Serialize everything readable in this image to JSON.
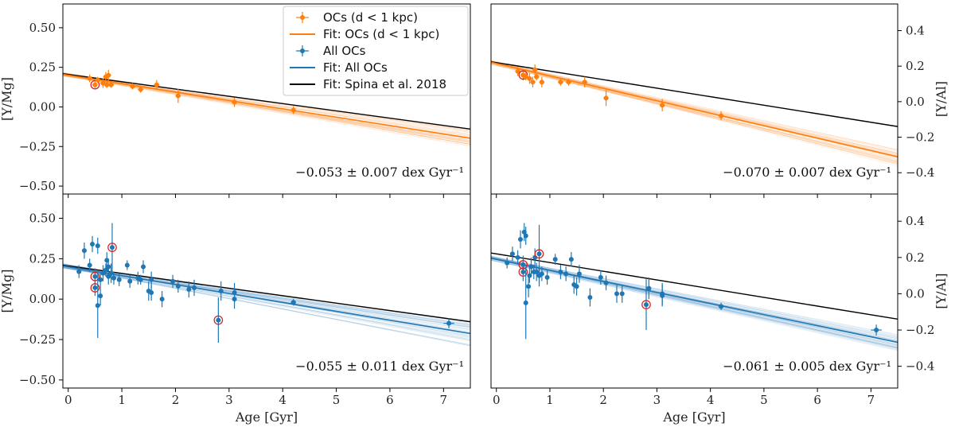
{
  "colors": {
    "orange": "#ff7f0e",
    "blue": "#1f77b4",
    "black": "#000000",
    "highlight": "#d62728"
  },
  "legend": {
    "items": [
      {
        "label": "OCs (d < 1 kpc)",
        "kind": "point",
        "color": "#ff7f0e"
      },
      {
        "label": "Fit: OCs (d < 1 kpc)",
        "kind": "line",
        "color": "#ff7f0e"
      },
      {
        "label": "All OCs",
        "kind": "point",
        "color": "#1f77b4"
      },
      {
        "label": "Fit: All OCs",
        "kind": "line",
        "color": "#1f77b4"
      },
      {
        "label": "Fit: Spina et al. 2018",
        "kind": "line",
        "color": "#000000"
      }
    ]
  },
  "chart_data": [
    {
      "id": "top-left",
      "type": "scatter",
      "xlabel": "",
      "ylabel": "[Y/Mg]",
      "ylabel_side": "left",
      "xlim": [
        -0.1,
        7.5
      ],
      "ylim": [
        -0.55,
        0.65
      ],
      "xticks": [
        0,
        1,
        2,
        3,
        4,
        5,
        6,
        7
      ],
      "show_xtick_labels": false,
      "yticks": [
        -0.5,
        -0.25,
        0.0,
        0.25,
        0.5
      ],
      "ytick_labels": [
        "−0.50",
        "−0.25",
        "0.00",
        "0.25",
        "0.50"
      ],
      "color": "#ff7f0e",
      "annotation": "−0.053 ± 0.007 dex Gyr⁻¹",
      "fit": {
        "intercept": 0.2,
        "slope": -0.053
      },
      "ref_fit": {
        "intercept": 0.205,
        "slope": -0.046
      },
      "bootstrap": {
        "slope_spread": 0.007,
        "intercept_spread": 0.012,
        "count": 40
      },
      "points": [
        {
          "x": 0.4,
          "y": 0.18,
          "yerr": 0.025,
          "xerr": 0.05
        },
        {
          "x": 0.5,
          "y": 0.14,
          "yerr": 0.03,
          "xerr": 0.05,
          "highlight": true
        },
        {
          "x": 0.55,
          "y": 0.17,
          "yerr": 0.02,
          "xerr": 0.05
        },
        {
          "x": 0.65,
          "y": 0.15,
          "yerr": 0.03,
          "xerr": 0.05
        },
        {
          "x": 0.7,
          "y": 0.19,
          "yerr": 0.03,
          "xerr": 0.05
        },
        {
          "x": 0.72,
          "y": 0.14,
          "yerr": 0.02,
          "xerr": 0.05
        },
        {
          "x": 0.75,
          "y": 0.2,
          "yerr": 0.035,
          "xerr": 0.05
        },
        {
          "x": 0.8,
          "y": 0.14,
          "yerr": 0.02,
          "xerr": 0.05
        },
        {
          "x": 1.2,
          "y": 0.13,
          "yerr": 0.02,
          "xerr": 0.05
        },
        {
          "x": 1.35,
          "y": 0.11,
          "yerr": 0.02,
          "xerr": 0.05
        },
        {
          "x": 1.65,
          "y": 0.14,
          "yerr": 0.03,
          "xerr": 0.05
        },
        {
          "x": 2.05,
          "y": 0.07,
          "yerr": 0.045,
          "xerr": 0.05
        },
        {
          "x": 3.1,
          "y": 0.03,
          "yerr": 0.03,
          "xerr": 0.05
        },
        {
          "x": 4.2,
          "y": -0.02,
          "yerr": 0.025,
          "xerr": 0.05
        }
      ]
    },
    {
      "id": "top-right",
      "type": "scatter",
      "xlabel": "",
      "ylabel": "[Y/Al]",
      "ylabel_side": "right",
      "xlim": [
        -0.1,
        7.5
      ],
      "ylim": [
        -0.52,
        0.55
      ],
      "xticks": [
        0,
        1,
        2,
        3,
        4,
        5,
        6,
        7
      ],
      "show_xtick_labels": false,
      "yticks": [
        -0.4,
        -0.2,
        0.0,
        0.2,
        0.4
      ],
      "ytick_labels": [
        "−0.4",
        "−0.2",
        "0.0",
        "0.2",
        "0.4"
      ],
      "color": "#ff7f0e",
      "annotation": "−0.070 ± 0.007 dex Gyr⁻¹",
      "fit": {
        "intercept": 0.215,
        "slope": -0.07
      },
      "ref_fit": {
        "intercept": 0.22,
        "slope": -0.048
      },
      "bootstrap": {
        "slope_spread": 0.007,
        "intercept_spread": 0.012,
        "count": 40
      },
      "points": [
        {
          "x": 0.4,
          "y": 0.17,
          "yerr": 0.025,
          "xerr": 0.05
        },
        {
          "x": 0.5,
          "y": 0.15,
          "yerr": 0.03,
          "xerr": 0.05,
          "highlight": true
        },
        {
          "x": 0.55,
          "y": 0.14,
          "yerr": 0.02,
          "xerr": 0.05
        },
        {
          "x": 0.62,
          "y": 0.13,
          "yerr": 0.03,
          "xerr": 0.05
        },
        {
          "x": 0.68,
          "y": 0.11,
          "yerr": 0.03,
          "xerr": 0.05
        },
        {
          "x": 0.72,
          "y": 0.18,
          "yerr": 0.03,
          "xerr": 0.05
        },
        {
          "x": 0.75,
          "y": 0.14,
          "yerr": 0.02,
          "xerr": 0.05
        },
        {
          "x": 0.85,
          "y": 0.11,
          "yerr": 0.03,
          "xerr": 0.05
        },
        {
          "x": 1.2,
          "y": 0.11,
          "yerr": 0.02,
          "xerr": 0.05
        },
        {
          "x": 1.35,
          "y": 0.11,
          "yerr": 0.02,
          "xerr": 0.05
        },
        {
          "x": 1.65,
          "y": 0.11,
          "yerr": 0.03,
          "xerr": 0.05
        },
        {
          "x": 2.05,
          "y": 0.02,
          "yerr": 0.045,
          "xerr": 0.05
        },
        {
          "x": 3.1,
          "y": -0.02,
          "yerr": 0.035,
          "xerr": 0.05
        },
        {
          "x": 4.2,
          "y": -0.08,
          "yerr": 0.025,
          "xerr": 0.05
        }
      ]
    },
    {
      "id": "bottom-left",
      "type": "scatter",
      "xlabel": "Age [Gyr]",
      "ylabel": "[Y/Mg]",
      "ylabel_side": "left",
      "xlim": [
        -0.1,
        7.5
      ],
      "ylim": [
        -0.55,
        0.65
      ],
      "xticks": [
        0,
        1,
        2,
        3,
        4,
        5,
        6,
        7
      ],
      "show_xtick_labels": true,
      "xtick_labels": [
        "0",
        "1",
        "2",
        "3",
        "4",
        "5",
        "6",
        "7"
      ],
      "yticks": [
        -0.5,
        -0.25,
        0.0,
        0.25,
        0.5
      ],
      "ytick_labels": [
        "−0.50",
        "−0.25",
        "0.00",
        "0.25",
        "0.50"
      ],
      "color": "#1f77b4",
      "annotation": "−0.055 ± 0.011 dex Gyr⁻¹",
      "fit": {
        "intercept": 0.2,
        "slope": -0.055
      },
      "ref_fit": {
        "intercept": 0.205,
        "slope": -0.046
      },
      "bootstrap": {
        "slope_spread": 0.011,
        "intercept_spread": 0.015,
        "count": 40
      },
      "points": [
        {
          "x": 0.2,
          "y": 0.17,
          "yerr": 0.04,
          "xerr": 0.03
        },
        {
          "x": 0.3,
          "y": 0.3,
          "yerr": 0.05,
          "xerr": 0.03
        },
        {
          "x": 0.4,
          "y": 0.21,
          "yerr": 0.04,
          "xerr": 0.03
        },
        {
          "x": 0.45,
          "y": 0.34,
          "yerr": 0.05,
          "xerr": 0.03
        },
        {
          "x": 0.5,
          "y": 0.14,
          "yerr": 0.05,
          "xerr": 0.03,
          "highlight": true
        },
        {
          "x": 0.5,
          "y": 0.07,
          "yerr": 0.05,
          "xerr": 0.03,
          "highlight": true
        },
        {
          "x": 0.55,
          "y": 0.33,
          "yerr": 0.05,
          "xerr": 0.03
        },
        {
          "x": 0.55,
          "y": -0.04,
          "yerr": 0.2,
          "xerr": 0.03
        },
        {
          "x": 0.6,
          "y": 0.02,
          "yerr": 0.06,
          "xerr": 0.03
        },
        {
          "x": 0.6,
          "y": 0.12,
          "yerr": 0.04,
          "xerr": 0.03
        },
        {
          "x": 0.65,
          "y": 0.16,
          "yerr": 0.05,
          "xerr": 0.03
        },
        {
          "x": 0.7,
          "y": 0.18,
          "yerr": 0.04,
          "xerr": 0.03
        },
        {
          "x": 0.72,
          "y": 0.24,
          "yerr": 0.05,
          "xerr": 0.03
        },
        {
          "x": 0.75,
          "y": 0.14,
          "yerr": 0.05,
          "xerr": 0.03
        },
        {
          "x": 0.75,
          "y": 0.2,
          "yerr": 0.05,
          "xerr": 0.03
        },
        {
          "x": 0.8,
          "y": 0.16,
          "yerr": 0.06,
          "xerr": 0.03
        },
        {
          "x": 0.82,
          "y": 0.32,
          "yerr": 0.15,
          "xerr": 0.03,
          "highlight": true
        },
        {
          "x": 0.85,
          "y": 0.13,
          "yerr": 0.04,
          "xerr": 0.03
        },
        {
          "x": 0.95,
          "y": 0.12,
          "yerr": 0.04,
          "xerr": 0.03
        },
        {
          "x": 1.1,
          "y": 0.21,
          "yerr": 0.03,
          "xerr": 0.03
        },
        {
          "x": 1.15,
          "y": 0.11,
          "yerr": 0.04,
          "xerr": 0.03
        },
        {
          "x": 1.3,
          "y": 0.13,
          "yerr": 0.04,
          "xerr": 0.03
        },
        {
          "x": 1.35,
          "y": 0.12,
          "yerr": 0.03,
          "xerr": 0.03
        },
        {
          "x": 1.4,
          "y": 0.2,
          "yerr": 0.04,
          "xerr": 0.03
        },
        {
          "x": 1.5,
          "y": 0.05,
          "yerr": 0.06,
          "xerr": 0.03
        },
        {
          "x": 1.55,
          "y": 0.04,
          "yerr": 0.05,
          "xerr": 0.03
        },
        {
          "x": 1.55,
          "y": 0.12,
          "yerr": 0.05,
          "xerr": 0.03
        },
        {
          "x": 1.75,
          "y": 0.0,
          "yerr": 0.05,
          "xerr": 0.03
        },
        {
          "x": 1.95,
          "y": 0.11,
          "yerr": 0.04,
          "xerr": 0.03
        },
        {
          "x": 2.05,
          "y": 0.08,
          "yerr": 0.04,
          "xerr": 0.03
        },
        {
          "x": 2.25,
          "y": 0.06,
          "yerr": 0.05,
          "xerr": 0.03
        },
        {
          "x": 2.35,
          "y": 0.07,
          "yerr": 0.05,
          "xerr": 0.03
        },
        {
          "x": 2.8,
          "y": -0.13,
          "yerr": 0.14,
          "xerr": 0.03,
          "highlight": true
        },
        {
          "x": 2.85,
          "y": 0.05,
          "yerr": 0.06,
          "xerr": 0.03
        },
        {
          "x": 3.1,
          "y": 0.04,
          "yerr": 0.06,
          "xerr": 0.03
        },
        {
          "x": 3.1,
          "y": 0.0,
          "yerr": 0.06,
          "xerr": 0.03
        },
        {
          "x": 4.2,
          "y": -0.02,
          "yerr": 0.02,
          "xerr": 0.05
        },
        {
          "x": 7.1,
          "y": -0.15,
          "yerr": 0.03,
          "xerr": 0.1
        }
      ]
    },
    {
      "id": "bottom-right",
      "type": "scatter",
      "xlabel": "Age [Gyr]",
      "ylabel": "[Y/Al]",
      "ylabel_side": "right",
      "xlim": [
        -0.1,
        7.5
      ],
      "ylim": [
        -0.52,
        0.55
      ],
      "xticks": [
        0,
        1,
        2,
        3,
        4,
        5,
        6,
        7
      ],
      "show_xtick_labels": true,
      "xtick_labels": [
        "0",
        "1",
        "2",
        "3",
        "4",
        "5",
        "6",
        "7"
      ],
      "yticks": [
        -0.4,
        -0.2,
        0.0,
        0.2,
        0.4
      ],
      "ytick_labels": [
        "−0.4",
        "−0.2",
        "0.0",
        "0.2",
        "0.4"
      ],
      "color": "#1f77b4",
      "annotation": "−0.061 ± 0.005 dex Gyr⁻¹",
      "fit": {
        "intercept": 0.19,
        "slope": -0.061
      },
      "ref_fit": {
        "intercept": 0.22,
        "slope": -0.048
      },
      "bootstrap": {
        "slope_spread": 0.005,
        "intercept_spread": 0.012,
        "count": 40
      },
      "points": [
        {
          "x": 0.2,
          "y": 0.17,
          "yerr": 0.03,
          "xerr": 0.03
        },
        {
          "x": 0.3,
          "y": 0.22,
          "yerr": 0.04,
          "xerr": 0.03
        },
        {
          "x": 0.4,
          "y": 0.2,
          "yerr": 0.04,
          "xerr": 0.03
        },
        {
          "x": 0.45,
          "y": 0.3,
          "yerr": 0.05,
          "xerr": 0.03
        },
        {
          "x": 0.5,
          "y": 0.16,
          "yerr": 0.05,
          "xerr": 0.03,
          "highlight": true
        },
        {
          "x": 0.5,
          "y": 0.12,
          "yerr": 0.05,
          "xerr": 0.03,
          "highlight": true
        },
        {
          "x": 0.52,
          "y": 0.34,
          "yerr": 0.05,
          "xerr": 0.03
        },
        {
          "x": 0.55,
          "y": 0.32,
          "yerr": 0.05,
          "xerr": 0.03
        },
        {
          "x": 0.55,
          "y": -0.05,
          "yerr": 0.2,
          "xerr": 0.03
        },
        {
          "x": 0.6,
          "y": 0.04,
          "yerr": 0.06,
          "xerr": 0.03
        },
        {
          "x": 0.62,
          "y": 0.1,
          "yerr": 0.04,
          "xerr": 0.03
        },
        {
          "x": 0.65,
          "y": 0.15,
          "yerr": 0.05,
          "xerr": 0.03
        },
        {
          "x": 0.7,
          "y": 0.12,
          "yerr": 0.04,
          "xerr": 0.03
        },
        {
          "x": 0.72,
          "y": 0.2,
          "yerr": 0.05,
          "xerr": 0.03
        },
        {
          "x": 0.75,
          "y": 0.12,
          "yerr": 0.05,
          "xerr": 0.03
        },
        {
          "x": 0.8,
          "y": 0.1,
          "yerr": 0.06,
          "xerr": 0.03
        },
        {
          "x": 0.8,
          "y": 0.22,
          "yerr": 0.16,
          "xerr": 0.03,
          "highlight": true
        },
        {
          "x": 0.85,
          "y": 0.11,
          "yerr": 0.04,
          "xerr": 0.03
        },
        {
          "x": 0.95,
          "y": 0.09,
          "yerr": 0.04,
          "xerr": 0.03
        },
        {
          "x": 1.1,
          "y": 0.19,
          "yerr": 0.03,
          "xerr": 0.03
        },
        {
          "x": 1.2,
          "y": 0.12,
          "yerr": 0.04,
          "xerr": 0.03
        },
        {
          "x": 1.3,
          "y": 0.11,
          "yerr": 0.04,
          "xerr": 0.03
        },
        {
          "x": 1.4,
          "y": 0.19,
          "yerr": 0.04,
          "xerr": 0.03
        },
        {
          "x": 1.45,
          "y": 0.05,
          "yerr": 0.05,
          "xerr": 0.03
        },
        {
          "x": 1.5,
          "y": 0.04,
          "yerr": 0.05,
          "xerr": 0.03
        },
        {
          "x": 1.55,
          "y": 0.11,
          "yerr": 0.05,
          "xerr": 0.03
        },
        {
          "x": 1.75,
          "y": -0.02,
          "yerr": 0.05,
          "xerr": 0.03
        },
        {
          "x": 1.95,
          "y": 0.09,
          "yerr": 0.04,
          "xerr": 0.03
        },
        {
          "x": 2.05,
          "y": 0.06,
          "yerr": 0.04,
          "xerr": 0.03
        },
        {
          "x": 2.25,
          "y": 0.0,
          "yerr": 0.05,
          "xerr": 0.03
        },
        {
          "x": 2.35,
          "y": 0.0,
          "yerr": 0.05,
          "xerr": 0.03
        },
        {
          "x": 2.8,
          "y": -0.06,
          "yerr": 0.14,
          "xerr": 0.03,
          "highlight": true
        },
        {
          "x": 2.85,
          "y": 0.03,
          "yerr": 0.06,
          "xerr": 0.03
        },
        {
          "x": 3.1,
          "y": 0.0,
          "yerr": 0.06,
          "xerr": 0.03
        },
        {
          "x": 3.1,
          "y": -0.01,
          "yerr": 0.06,
          "xerr": 0.03
        },
        {
          "x": 4.2,
          "y": -0.07,
          "yerr": 0.02,
          "xerr": 0.05
        },
        {
          "x": 7.1,
          "y": -0.2,
          "yerr": 0.03,
          "xerr": 0.1
        }
      ]
    }
  ]
}
